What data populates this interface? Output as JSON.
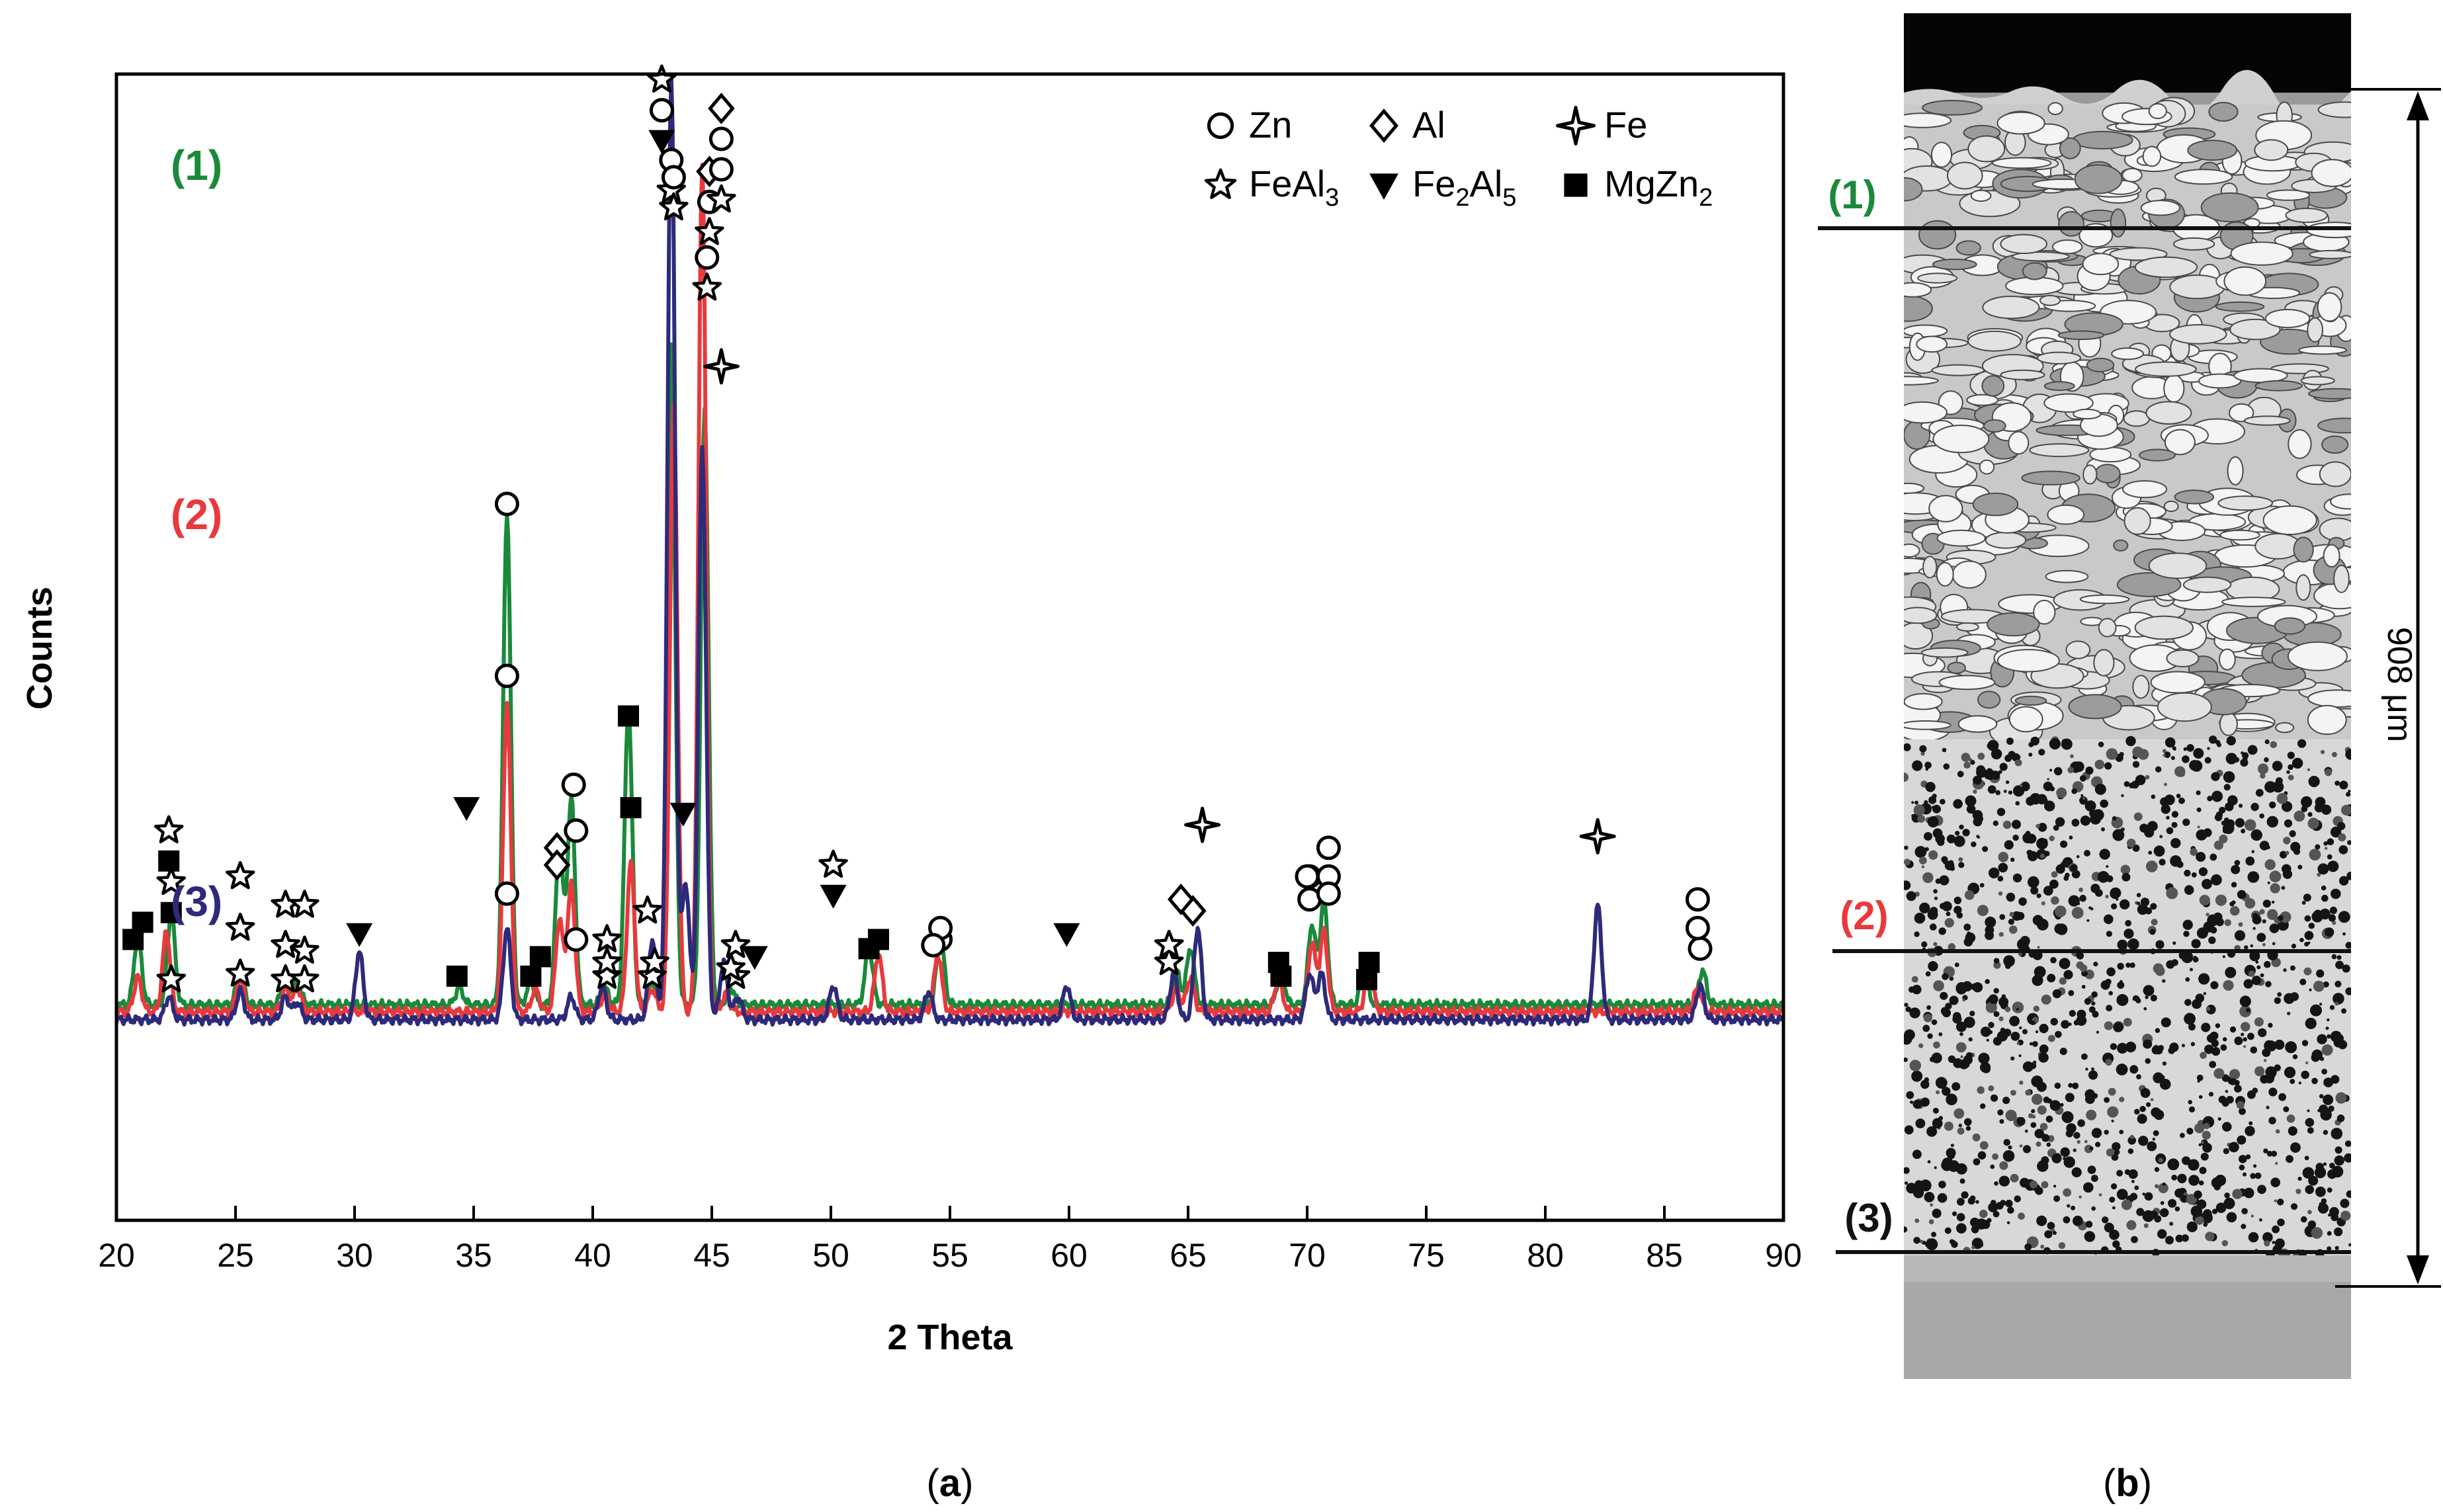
{
  "panel_labels": {
    "a": "(a)",
    "b": "(b)"
  },
  "chart_data": {
    "type": "line",
    "title": "",
    "xlabel": "2 Theta",
    "ylabel": "Counts",
    "xlim": [
      20,
      90
    ],
    "xticks": [
      20,
      25,
      30,
      35,
      40,
      45,
      50,
      55,
      60,
      65,
      70,
      75,
      80,
      85,
      90
    ],
    "grid": false,
    "legend_position": "top-right",
    "legend": [
      {
        "marker": "circle",
        "name": "Zn"
      },
      {
        "marker": "diamond",
        "name": "Al"
      },
      {
        "marker": "cross",
        "name": "Fe"
      },
      {
        "marker": "star",
        "name": "FeAl",
        "sub": "3"
      },
      {
        "marker": "triangle",
        "name": "Fe",
        "sub": "2",
        "name2": "Al",
        "sub2": "5"
      },
      {
        "marker": "square",
        "name": "MgZn",
        "sub": "2"
      }
    ],
    "series": [
      {
        "name": "(1)",
        "color": "#1a8a3a",
        "baseline": 0.812,
        "peaks": [
          {
            "x": 20.9,
            "h": 0.06
          },
          {
            "x": 22.3,
            "h": 0.08
          },
          {
            "x": 25.2,
            "h": 0.03
          },
          {
            "x": 27.1,
            "h": 0.025
          },
          {
            "x": 27.6,
            "h": 0.02
          },
          {
            "x": 34.4,
            "h": 0.015
          },
          {
            "x": 36.4,
            "h": 0.43
          },
          {
            "x": 37.4,
            "h": 0.02
          },
          {
            "x": 38.6,
            "h": 0.14
          },
          {
            "x": 39.1,
            "h": 0.18
          },
          {
            "x": 40.5,
            "h": 0.015
          },
          {
            "x": 41.5,
            "h": 0.26
          },
          {
            "x": 42.5,
            "h": 0.02
          },
          {
            "x": 43.3,
            "h": 0.58
          },
          {
            "x": 44.7,
            "h": 0.52
          },
          {
            "x": 45.8,
            "h": 0.015
          },
          {
            "x": 51.6,
            "h": 0.05
          },
          {
            "x": 54.6,
            "h": 0.06
          },
          {
            "x": 64.5,
            "h": 0.03
          },
          {
            "x": 65.1,
            "h": 0.05
          },
          {
            "x": 68.9,
            "h": 0.03
          },
          {
            "x": 70.2,
            "h": 0.07
          },
          {
            "x": 70.7,
            "h": 0.09
          },
          {
            "x": 72.4,
            "h": 0.03
          },
          {
            "x": 86.6,
            "h": 0.03
          }
        ],
        "markers": [
          {
            "x": 20.7,
            "sym": [
              "square"
            ],
            "top": 0.755
          },
          {
            "x": 22.3,
            "sym": [
              "star",
              "square"
            ],
            "top": 0.705
          },
          {
            "x": 25.2,
            "sym": [
              "star"
            ],
            "top": 0.745
          },
          {
            "x": 27.1,
            "sym": [
              "star"
            ],
            "top": 0.76
          },
          {
            "x": 27.9,
            "sym": [
              "star"
            ],
            "top": 0.765
          },
          {
            "x": 34.3,
            "sym": [
              "square"
            ],
            "top": 0.787
          },
          {
            "x": 36.4,
            "sym": [
              "circle"
            ],
            "top": 0.375
          },
          {
            "x": 37.4,
            "sym": [
              "square"
            ],
            "top": 0.787
          },
          {
            "x": 38.5,
            "sym": [
              "diamond"
            ],
            "top": 0.675
          },
          {
            "x": 39.2,
            "sym": [
              "circle"
            ],
            "top": 0.62
          },
          {
            "x": 40.6,
            "sym": [
              "star"
            ],
            "top": 0.787
          },
          {
            "x": 41.5,
            "sym": [
              "square"
            ],
            "top": 0.56
          },
          {
            "x": 42.5,
            "sym": [
              "star"
            ],
            "top": 0.787
          },
          {
            "x": 43.3,
            "sym": [
              "circle",
              "star"
            ],
            "top": 0.075
          },
          {
            "x": 44.9,
            "sym": [
              "diamond",
              "circle",
              "star"
            ],
            "top": 0.085
          },
          {
            "x": 46.0,
            "sym": [
              "star"
            ],
            "top": 0.787
          },
          {
            "x": 51.6,
            "sym": [
              "square"
            ],
            "top": 0.763
          },
          {
            "x": 54.6,
            "sym": [
              "circle"
            ],
            "top": 0.755
          },
          {
            "x": 64.2,
            "sym": [
              "star"
            ],
            "top": 0.76
          },
          {
            "x": 65.2,
            "sym": [
              "diamond"
            ],
            "top": 0.73
          },
          {
            "x": 68.9,
            "sym": [
              "square"
            ],
            "top": 0.787
          },
          {
            "x": 70.1,
            "sym": [
              "circle"
            ],
            "top": 0.7
          },
          {
            "x": 70.9,
            "sym": [
              "circle"
            ],
            "top": 0.675
          },
          {
            "x": 72.5,
            "sym": [
              "square"
            ],
            "top": 0.79
          },
          {
            "x": 86.5,
            "sym": [
              "circle"
            ],
            "top": 0.763
          }
        ]
      },
      {
        "name": "(2)",
        "color": "#e8393d",
        "baseline": 0.818,
        "peaks": [
          {
            "x": 20.9,
            "h": 0.03
          },
          {
            "x": 22.1,
            "h": 0.07
          },
          {
            "x": 25.2,
            "h": 0.03
          },
          {
            "x": 27.1,
            "h": 0.02
          },
          {
            "x": 27.6,
            "h": 0.02
          },
          {
            "x": 36.4,
            "h": 0.27
          },
          {
            "x": 37.6,
            "h": 0.02
          },
          {
            "x": 38.6,
            "h": 0.08
          },
          {
            "x": 39.1,
            "h": 0.11
          },
          {
            "x": 40.5,
            "h": 0.015
          },
          {
            "x": 41.6,
            "h": 0.13
          },
          {
            "x": 42.5,
            "h": 0.02
          },
          {
            "x": 43.4,
            "h": 0.53
          },
          {
            "x": 44.6,
            "h": 0.74
          },
          {
            "x": 45.6,
            "h": 0.015
          },
          {
            "x": 52.0,
            "h": 0.05
          },
          {
            "x": 54.5,
            "h": 0.05
          },
          {
            "x": 64.5,
            "h": 0.02
          },
          {
            "x": 65.1,
            "h": 0.03
          },
          {
            "x": 68.8,
            "h": 0.03
          },
          {
            "x": 70.2,
            "h": 0.06
          },
          {
            "x": 70.7,
            "h": 0.07
          },
          {
            "x": 72.6,
            "h": 0.04
          },
          {
            "x": 86.4,
            "h": 0.02
          }
        ],
        "markers": [
          {
            "x": 21.1,
            "sym": [
              "square"
            ],
            "top": 0.74
          },
          {
            "x": 22.2,
            "sym": [
              "star",
              "square"
            ],
            "top": 0.66
          },
          {
            "x": 25.2,
            "sym": [
              "star"
            ],
            "top": 0.7
          },
          {
            "x": 27.1,
            "sym": [
              "star"
            ],
            "top": 0.725
          },
          {
            "x": 27.9,
            "sym": [
              "star"
            ],
            "top": 0.725
          },
          {
            "x": 36.4,
            "sym": [
              "circle"
            ],
            "top": 0.525
          },
          {
            "x": 37.8,
            "sym": [
              "square"
            ],
            "top": 0.77
          },
          {
            "x": 38.5,
            "sym": [
              "diamond"
            ],
            "top": 0.69
          },
          {
            "x": 39.3,
            "sym": [
              "circle"
            ],
            "top": 0.66
          },
          {
            "x": 40.6,
            "sym": [
              "star"
            ],
            "top": 0.775
          },
          {
            "x": 41.6,
            "sym": [
              "square"
            ],
            "top": 0.64
          },
          {
            "x": 42.6,
            "sym": [
              "star"
            ],
            "top": 0.775
          },
          {
            "x": 43.4,
            "sym": [
              "circle",
              "star"
            ],
            "top": 0.09
          },
          {
            "x": 45.4,
            "sym": [
              "diamond",
              "circle",
              "circle",
              "star"
            ],
            "top": 0.03
          },
          {
            "x": 45.8,
            "sym": [
              "star"
            ],
            "top": 0.78
          },
          {
            "x": 52.0,
            "sym": [
              "square"
            ],
            "top": 0.755
          },
          {
            "x": 54.6,
            "sym": [
              "circle"
            ],
            "top": 0.745
          },
          {
            "x": 64.2,
            "sym": [
              "star"
            ],
            "top": 0.775
          },
          {
            "x": 65.2,
            "sym": [
              "diamond"
            ],
            "top": 0.73
          },
          {
            "x": 68.8,
            "sym": [
              "square"
            ],
            "top": 0.775
          },
          {
            "x": 70.1,
            "sym": [
              "circle"
            ],
            "top": 0.72
          },
          {
            "x": 70.9,
            "sym": [
              "circle"
            ],
            "top": 0.7
          },
          {
            "x": 72.6,
            "sym": [
              "square"
            ],
            "top": 0.775
          },
          {
            "x": 86.4,
            "sym": [
              "circle"
            ],
            "top": 0.745
          }
        ]
      },
      {
        "name": "(3)",
        "color": "#2e2a7a",
        "baseline": 0.825,
        "peaks": [
          {
            "x": 22.2,
            "h": 0.02
          },
          {
            "x": 25.2,
            "h": 0.025
          },
          {
            "x": 27.1,
            "h": 0.02
          },
          {
            "x": 27.6,
            "h": 0.015
          },
          {
            "x": 30.2,
            "h": 0.06
          },
          {
            "x": 36.4,
            "h": 0.08
          },
          {
            "x": 39.1,
            "h": 0.02
          },
          {
            "x": 40.4,
            "h": 0.03
          },
          {
            "x": 42.5,
            "h": 0.07
          },
          {
            "x": 43.3,
            "h": 0.82
          },
          {
            "x": 43.9,
            "h": 0.12
          },
          {
            "x": 44.6,
            "h": 0.5
          },
          {
            "x": 45.5,
            "h": 0.05
          },
          {
            "x": 46.1,
            "h": 0.02
          },
          {
            "x": 50.1,
            "h": 0.03
          },
          {
            "x": 54.1,
            "h": 0.025
          },
          {
            "x": 59.9,
            "h": 0.03
          },
          {
            "x": 64.4,
            "h": 0.04
          },
          {
            "x": 65.4,
            "h": 0.08
          },
          {
            "x": 70.1,
            "h": 0.04
          },
          {
            "x": 70.6,
            "h": 0.04
          },
          {
            "x": 82.2,
            "h": 0.1
          },
          {
            "x": 86.5,
            "h": 0.03
          }
        ],
        "markers": [
          {
            "x": 22.3,
            "sym": [
              "star"
            ],
            "top": 0.79
          },
          {
            "x": 25.2,
            "sym": [
              "star"
            ],
            "top": 0.785
          },
          {
            "x": 27.1,
            "sym": [
              "star"
            ],
            "top": 0.79
          },
          {
            "x": 27.9,
            "sym": [
              "star"
            ],
            "top": 0.79
          },
          {
            "x": 30.2,
            "sym": [
              "triangle"
            ],
            "top": 0.75
          },
          {
            "x": 34.7,
            "sym": [
              "triangle"
            ],
            "top": 0.64
          },
          {
            "x": 36.4,
            "sym": [
              "circle"
            ],
            "top": 0.715
          },
          {
            "x": 39.3,
            "sym": [
              "circle"
            ],
            "top": 0.755
          },
          {
            "x": 40.6,
            "sym": [
              "star"
            ],
            "top": 0.755
          },
          {
            "x": 42.3,
            "sym": [
              "star"
            ],
            "top": 0.73
          },
          {
            "x": 42.9,
            "sym": [
              "star",
              "circle",
              "triangle"
            ],
            "top": 0.005
          },
          {
            "x": 43.8,
            "sym": [
              "triangle"
            ],
            "top": 0.645
          },
          {
            "x": 44.8,
            "sym": [
              "circle",
              "star"
            ],
            "top": 0.16
          },
          {
            "x": 45.4,
            "sym": [
              "cross"
            ],
            "top": 0.255
          },
          {
            "x": 46.0,
            "sym": [
              "star"
            ],
            "top": 0.76
          },
          {
            "x": 46.8,
            "sym": [
              "triangle"
            ],
            "top": 0.77
          },
          {
            "x": 50.1,
            "sym": [
              "star",
              "triangle"
            ],
            "top": 0.69
          },
          {
            "x": 54.3,
            "sym": [
              "circle"
            ],
            "top": 0.76
          },
          {
            "x": 59.9,
            "sym": [
              "triangle"
            ],
            "top": 0.75
          },
          {
            "x": 64.2,
            "sym": [
              "star"
            ],
            "top": 0.76
          },
          {
            "x": 64.7,
            "sym": [
              "diamond"
            ],
            "top": 0.72
          },
          {
            "x": 65.6,
            "sym": [
              "cross"
            ],
            "top": 0.655
          },
          {
            "x": 70.0,
            "sym": [
              "circle"
            ],
            "top": 0.7
          },
          {
            "x": 70.9,
            "sym": [
              "circle"
            ],
            "top": 0.715
          },
          {
            "x": 82.2,
            "sym": [
              "cross"
            ],
            "top": 0.665
          },
          {
            "x": 86.4,
            "sym": [
              "circle"
            ],
            "top": 0.72
          }
        ]
      }
    ]
  },
  "micrograph": {
    "scale_label": "908 μm",
    "region_labels": [
      {
        "text": "(1)",
        "color": "#1a8a3a"
      },
      {
        "text": "(2)",
        "color": "#e8393d"
      },
      {
        "text": "(3)",
        "color": "#111111"
      }
    ]
  }
}
